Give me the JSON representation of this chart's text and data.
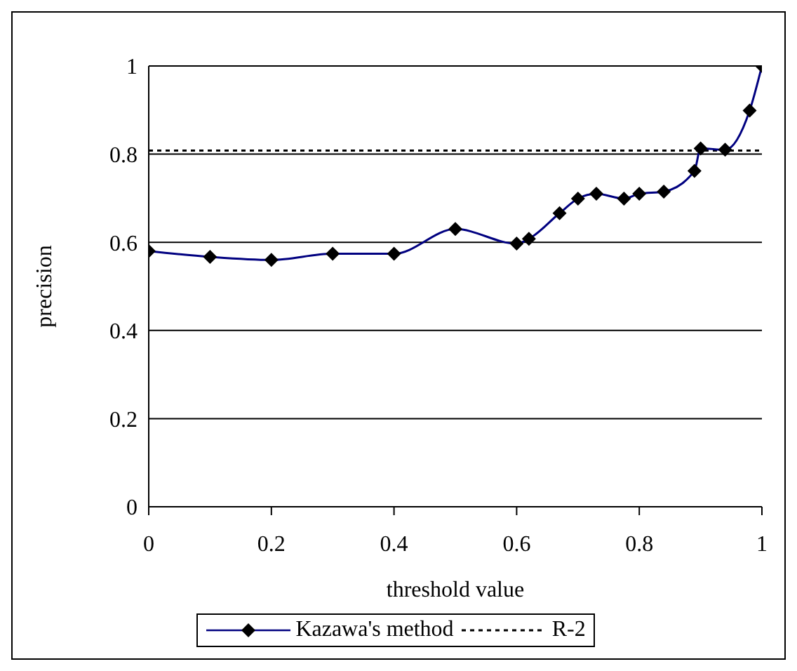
{
  "chart_data": {
    "type": "line",
    "xlabel": "threshold value",
    "ylabel": "precision",
    "xlim": [
      0,
      1
    ],
    "xticks": [
      0,
      0.2,
      0.4,
      0.6,
      0.8,
      1
    ],
    "ylim": [
      0,
      1
    ],
    "yticks": [
      0,
      0.2,
      0.4,
      0.6,
      0.8,
      1
    ],
    "grid": "y",
    "legend": "bottom",
    "marker": "diamond",
    "line_style": "solid",
    "series": [
      {
        "name": "Kazawa's method",
        "color": "#000080",
        "x": [
          0,
          0.1,
          0.2,
          0.3,
          0.4,
          0.5,
          0.6,
          0.62,
          0.67,
          0.7,
          0.73,
          0.775,
          0.8,
          0.84,
          0.89,
          0.9,
          0.94,
          0.98,
          1
        ],
        "values": [
          0.58,
          0.567,
          0.56,
          0.574,
          0.574,
          0.63,
          0.597,
          0.608,
          0.666,
          0.699,
          0.71,
          0.699,
          0.71,
          0.715,
          0.762,
          0.813,
          0.81,
          0.899,
          1
        ]
      }
    ],
    "ref_lines": [
      {
        "axis": "y",
        "value": 0.808,
        "label": "R-2",
        "color": "#000000",
        "line_style": "dotted"
      }
    ]
  }
}
